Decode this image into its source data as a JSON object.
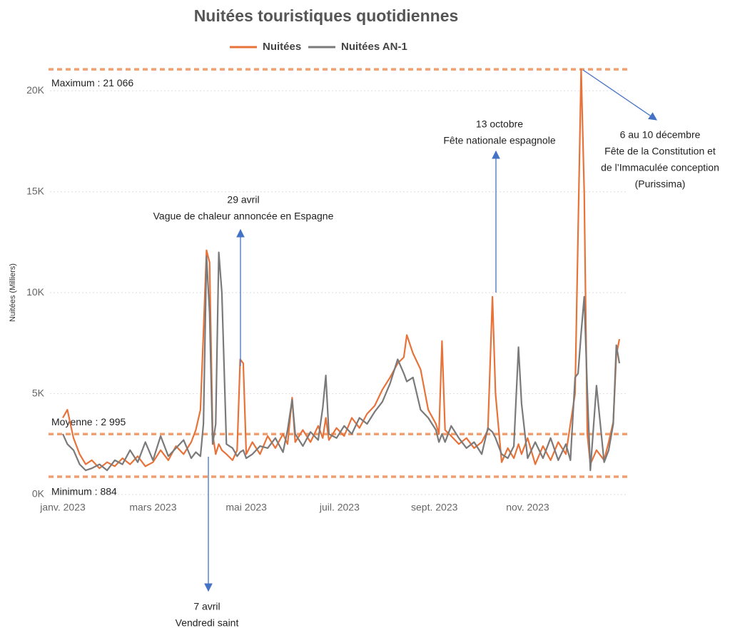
{
  "chart_data": {
    "type": "line",
    "title": "Nuitées touristiques quotidiennes",
    "y_label": "Nuitées (Milliers)",
    "x": [
      1,
      4,
      8,
      12,
      16,
      20,
      25,
      30,
      35,
      40,
      45,
      50,
      55,
      60,
      65,
      70,
      75,
      80,
      85,
      88,
      91,
      93,
      95,
      97,
      99,
      101,
      103,
      105,
      108,
      112,
      115,
      117,
      119,
      121,
      125,
      130,
      135,
      140,
      145,
      148,
      151,
      153,
      158,
      163,
      168,
      171,
      173,
      175,
      180,
      185,
      190,
      195,
      200,
      205,
      210,
      215,
      220,
      224,
      226,
      230,
      235,
      240,
      245,
      247,
      249,
      251,
      255,
      260,
      265,
      270,
      275,
      279,
      282,
      284,
      288,
      292,
      296,
      299,
      301,
      305,
      310,
      315,
      320,
      325,
      330,
      333,
      336,
      338,
      340,
      342,
      344,
      346,
      350,
      355,
      358,
      361,
      363,
      365
    ],
    "series": [
      {
        "name": "Nuitées",
        "color": "#e8733a",
        "values": [
          3800,
          4200,
          2800,
          2000,
          1500,
          1700,
          1300,
          1600,
          1400,
          1800,
          1500,
          1900,
          1400,
          1600,
          2200,
          1700,
          2400,
          2000,
          2600,
          3200,
          4200,
          8000,
          12100,
          11500,
          3000,
          2000,
          2500,
          2200,
          2000,
          1700,
          2200,
          6700,
          6500,
          2000,
          2600,
          2000,
          2900,
          2300,
          3000,
          2500,
          4800,
          2600,
          3200,
          2600,
          3400,
          2800,
          3800,
          2700,
          3300,
          2900,
          3800,
          3300,
          4000,
          4400,
          5200,
          5800,
          6500,
          6800,
          7900,
          7000,
          6200,
          4200,
          3500,
          3000,
          7600,
          3200,
          2900,
          2500,
          2800,
          2300,
          2600,
          3200,
          9800,
          5000,
          1600,
          2300,
          1800,
          2500,
          2000,
          2800,
          1500,
          2400,
          1700,
          2600,
          2000,
          3500,
          5000,
          13000,
          21066,
          15000,
          3000,
          1500,
          2200,
          1700,
          2600,
          3600,
          6900,
          7700
        ]
      },
      {
        "name": "Nuitées AN-1",
        "color": "#7a7a7a",
        "values": [
          3000,
          2500,
          2200,
          1500,
          1200,
          1300,
          1500,
          1200,
          1700,
          1500,
          2200,
          1600,
          2600,
          1700,
          2900,
          1900,
          2300,
          2700,
          1800,
          2100,
          1900,
          3500,
          11800,
          9000,
          2500,
          3500,
          12000,
          10000,
          2500,
          2300,
          1900,
          2100,
          2200,
          1800,
          2000,
          2400,
          2300,
          2800,
          2100,
          3200,
          4700,
          3000,
          2400,
          3100,
          2700,
          4300,
          5900,
          3000,
          2800,
          3400,
          3000,
          3800,
          3500,
          4100,
          4600,
          5500,
          6700,
          6000,
          5600,
          5800,
          4200,
          3800,
          3200,
          2600,
          3000,
          2600,
          3400,
          2800,
          2300,
          2600,
          2000,
          3300,
          3100,
          2800,
          2000,
          1800,
          2400,
          7300,
          4500,
          1800,
          2600,
          1800,
          2800,
          1700,
          2500,
          1700,
          5800,
          6000,
          8000,
          9800,
          5200,
          1200,
          5400,
          1600,
          2200,
          3500,
          7400,
          6500
        ]
      }
    ],
    "xlim": [
      1,
      365
    ],
    "xticks": [
      {
        "value": 1,
        "label": "janv. 2023"
      },
      {
        "value": 60,
        "label": "mars 2023"
      },
      {
        "value": 121,
        "label": "mai 2023"
      },
      {
        "value": 182,
        "label": "juil. 2023"
      },
      {
        "value": 244,
        "label": "sept. 2023"
      },
      {
        "value": 305,
        "label": "nov. 2023"
      }
    ],
    "ylim": [
      0,
      21600
    ],
    "yticks": [
      {
        "value": 0,
        "label": "0K"
      },
      {
        "value": 5000,
        "label": "5K"
      },
      {
        "value": 10000,
        "label": "10K"
      },
      {
        "value": 15000,
        "label": "15K"
      },
      {
        "value": 20000,
        "label": "20K"
      }
    ],
    "grid": true,
    "reference_lines": [
      {
        "label": "Maximum : 21 066",
        "value": 21066
      },
      {
        "label": "Moyenne : 2 995",
        "value": 2995
      },
      {
        "label": "Minimum : 884",
        "value": 884
      }
    ],
    "annotations": [
      {
        "lines": [
          "29 avril",
          "Vague de chaleur annoncée en Espagne"
        ]
      },
      {
        "lines": [
          "7 avril",
          "Vendredi saint"
        ]
      },
      {
        "lines": [
          "13 octobre",
          "Fête nationale espagnole"
        ]
      },
      {
        "lines": [
          "6 au 10 décembre",
          "Fête de la Constitution et",
          "de l’Immaculée conception",
          "(Purissima)"
        ]
      }
    ]
  }
}
